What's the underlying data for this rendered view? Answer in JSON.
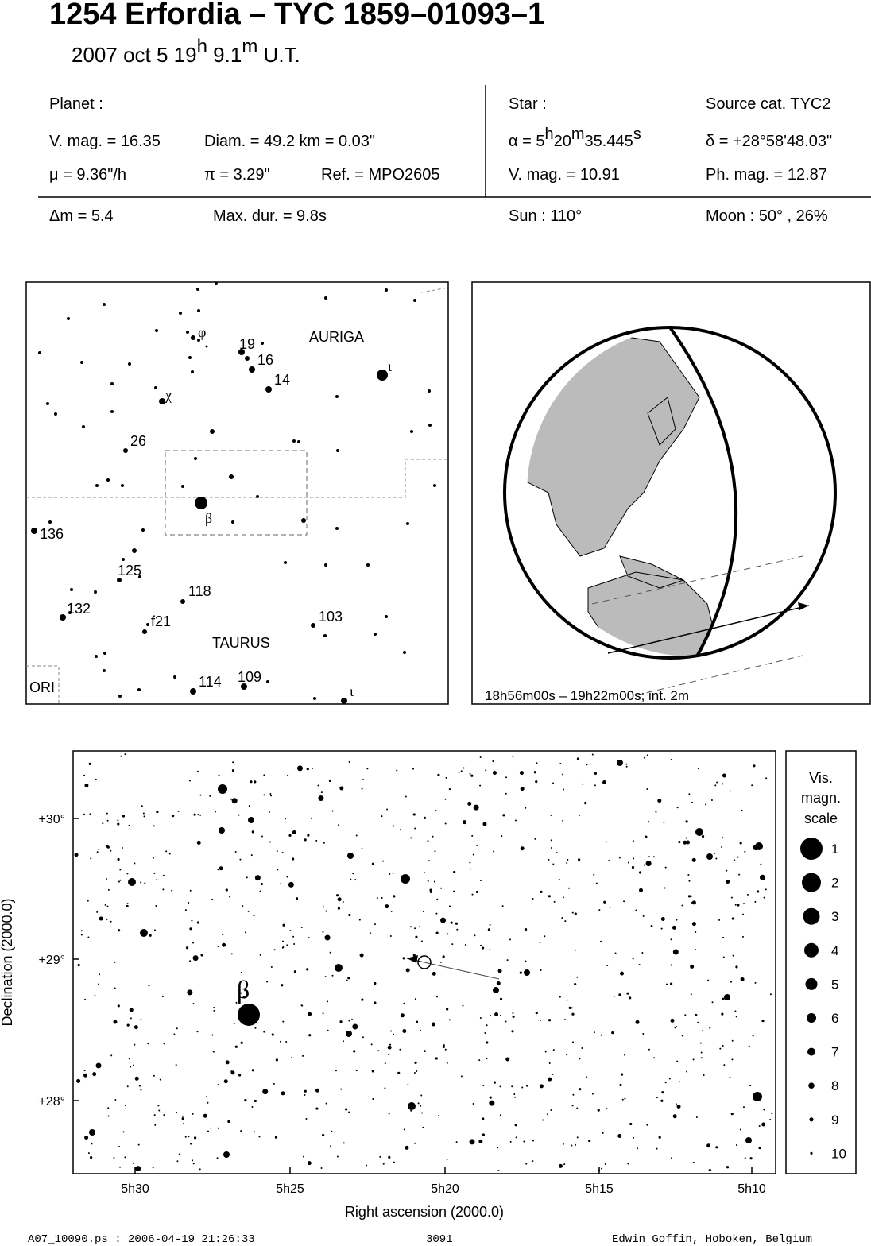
{
  "header": {
    "title": "1254 Erfordia  –  TYC 1859–01093–1",
    "date": [
      "2007 oct  5  19",
      "h",
      " 9.1",
      "m",
      " U.T."
    ]
  },
  "planet": {
    "label": "Planet :",
    "vmag": "V. mag. = 16.35",
    "diam": "Diam. = 49.2 km = 0.03\"",
    "mu": "μ =  9.36\"/h",
    "pi": "π =  3.29\"",
    "ref": "Ref. = MPO2605"
  },
  "star": {
    "label": "Star :",
    "source": "Source cat.  TYC2",
    "alpha": [
      "α =  5",
      "h",
      "20",
      "m",
      "35.445",
      "s"
    ],
    "delta": "δ = +28°58'48.03\"",
    "vmag": "V. mag. = 10.91",
    "phmag": "Ph. mag. = 12.87"
  },
  "event": {
    "dm": "Δm = 5.4",
    "maxdur": "Max. dur. = 9.8s",
    "sun": "Sun : 110°",
    "moon": "Moon :  50° , 26%"
  },
  "finder": {
    "labels": [
      "φ",
      "19",
      "16",
      "14",
      "AURIGA",
      "ι",
      "χ",
      "26",
      "β",
      "136",
      "125",
      "118",
      "132",
      "f21",
      "103",
      "TAURUS",
      "114",
      "109",
      "ι",
      "ORI"
    ]
  },
  "globe": {
    "caption": "18h56m00s – 19h22m00s; int.  2m"
  },
  "chart": {
    "ylabel": "Declination (2000.0)",
    "xlabel": "Right ascension (2000.0)",
    "yticks": [
      "+30°",
      "+29°",
      "+28°"
    ],
    "xticks": [
      "5h30",
      "5h25",
      "5h20",
      "5h15",
      "5h10"
    ],
    "star_label": "β"
  },
  "legend": {
    "title": [
      "Vis.",
      "magn.",
      "scale"
    ],
    "magnitudes": [
      1,
      2,
      3,
      4,
      5,
      6,
      7,
      8,
      9,
      10
    ]
  },
  "footer": {
    "file": "A07_10090.ps : 2006-04-19 21:26:33",
    "number": "3091",
    "author": "Edwin Goffin, Hoboken, Belgium"
  }
}
